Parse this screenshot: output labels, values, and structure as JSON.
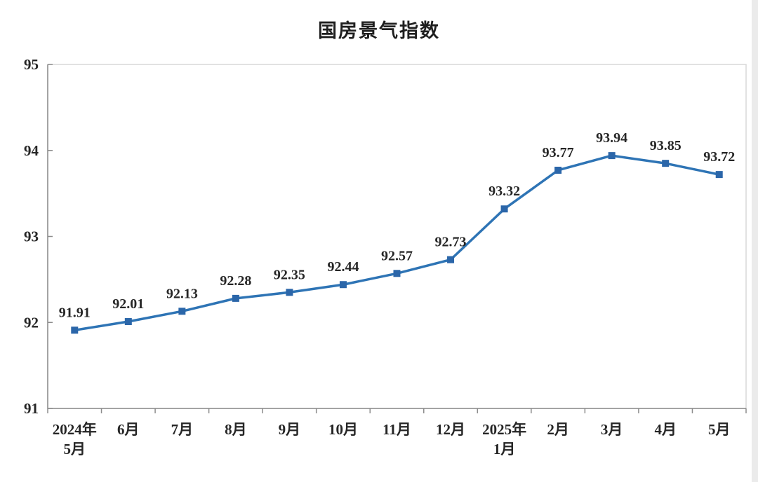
{
  "title": "国房景气指数",
  "colors": {
    "line": "#2E74B5",
    "marker": "#2B66A9",
    "text": "#262626",
    "axis": "#8c8c8c",
    "border": "#d9d9d9",
    "edge_strip": "#ebebeb"
  },
  "chart_data": {
    "type": "line",
    "title": "国房景气指数",
    "categories": [
      "2024年\n5月",
      "6月",
      "7月",
      "8月",
      "9月",
      "10月",
      "11月",
      "12月",
      "2025年\n1月",
      "2月",
      "3月",
      "4月",
      "5月"
    ],
    "values": [
      91.91,
      92.01,
      92.13,
      92.28,
      92.35,
      92.44,
      92.57,
      92.73,
      93.32,
      93.77,
      93.94,
      93.85,
      93.72
    ],
    "data_labels": [
      "91.91",
      "92.01",
      "92.13",
      "92.28",
      "92.35",
      "92.44",
      "92.57",
      "92.73",
      "93.32",
      "93.77",
      "93.94",
      "93.85",
      "93.72"
    ],
    "xlabel": "",
    "ylabel": "",
    "ylim": [
      91,
      95
    ],
    "yticks": [
      91,
      92,
      93,
      94,
      95
    ],
    "grid": false,
    "legend": "none",
    "marker_shape": "square",
    "show_data_labels": true
  }
}
